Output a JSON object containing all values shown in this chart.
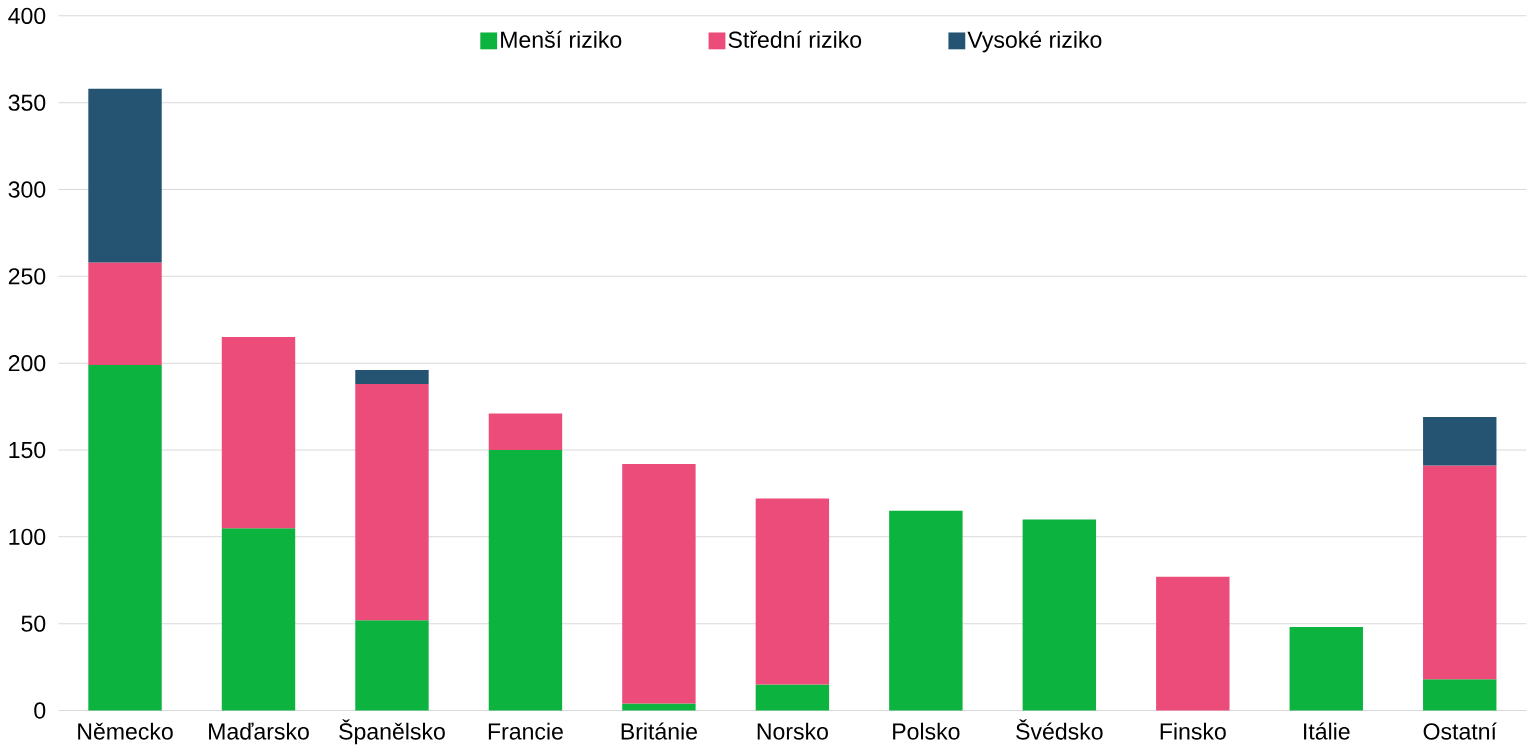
{
  "chart_data": {
    "type": "bar",
    "stacked": true,
    "categories": [
      "Německo",
      "Maďarsko",
      "Španělsko",
      "Francie",
      "Británie",
      "Norsko",
      "Polsko",
      "Švédsko",
      "Finsko",
      "Itálie",
      "Ostatní"
    ],
    "series": [
      {
        "name": "Menší riziko",
        "color": "#0db33f",
        "values": [
          199,
          105,
          52,
          150,
          4,
          15,
          115,
          110,
          null,
          48,
          18
        ]
      },
      {
        "name": "Střední riziko",
        "color": "#ec4c7a",
        "values": [
          59,
          110,
          136,
          21,
          138,
          107,
          null,
          null,
          77,
          null,
          123
        ]
      },
      {
        "name": "Vysoké riziko",
        "color": "#255473",
        "values": [
          100,
          null,
          8,
          null,
          null,
          null,
          null,
          null,
          null,
          null,
          28
        ]
      }
    ],
    "ylim": [
      0,
      400
    ],
    "yticks": [
      0,
      50,
      100,
      150,
      200,
      250,
      300,
      350,
      400
    ],
    "grid": "y",
    "legend": "top"
  }
}
